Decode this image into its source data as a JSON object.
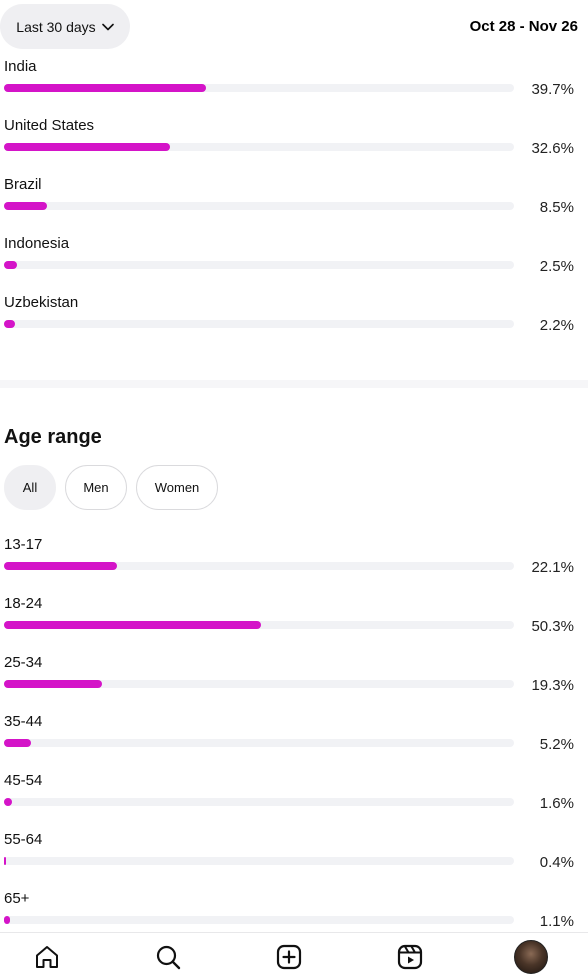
{
  "header": {
    "range_label": "Last 30 days",
    "date_range": "Oct 28 - Nov 26"
  },
  "countries": [
    {
      "label": "India",
      "pct_text": "39.7%",
      "value": 39.7
    },
    {
      "label": "United States",
      "pct_text": "32.6%",
      "value": 32.6
    },
    {
      "label": "Brazil",
      "pct_text": "8.5%",
      "value": 8.5
    },
    {
      "label": "Indonesia",
      "pct_text": "2.5%",
      "value": 2.5
    },
    {
      "label": "Uzbekistan",
      "pct_text": "2.2%",
      "value": 2.2
    }
  ],
  "age_section": {
    "title": "Age range",
    "filters": [
      {
        "label": "All",
        "active": true
      },
      {
        "label": "Men",
        "active": false
      },
      {
        "label": "Women",
        "active": false
      }
    ]
  },
  "ages": [
    {
      "label": "13-17",
      "pct_text": "22.1%",
      "value": 22.1
    },
    {
      "label": "18-24",
      "pct_text": "50.3%",
      "value": 50.3
    },
    {
      "label": "25-34",
      "pct_text": "19.3%",
      "value": 19.3
    },
    {
      "label": "35-44",
      "pct_text": "5.2%",
      "value": 5.2
    },
    {
      "label": "45-54",
      "pct_text": "1.6%",
      "value": 1.6
    },
    {
      "label": "55-64",
      "pct_text": "0.4%",
      "value": 0.4
    },
    {
      "label": "65+",
      "pct_text": "1.1%",
      "value": 1.1
    }
  ],
  "colors": {
    "bar_fill": "#d414c8",
    "bar_track": "#f1f2f5"
  },
  "nav": {
    "icons": [
      "home-icon",
      "search-icon",
      "create-icon",
      "reels-icon",
      "profile-avatar"
    ]
  }
}
